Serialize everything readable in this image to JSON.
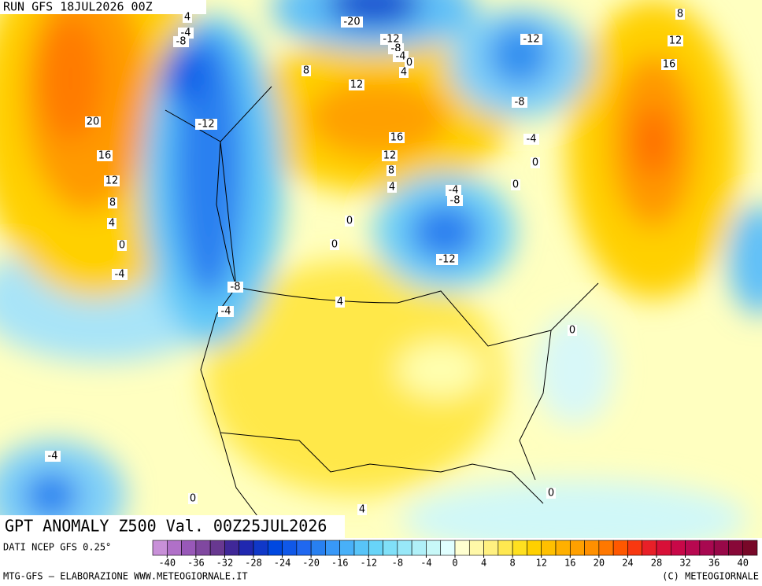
{
  "header": {
    "run": "RUN GFS 18JUL2026 00Z"
  },
  "map": {
    "title": "GPT ANOMALY Z500 Val. 00Z25JUL2026",
    "contour_labels": [
      4,
      -4,
      -8,
      -20,
      -12,
      -8,
      -4,
      0,
      4,
      -12,
      8,
      12,
      16,
      8,
      12,
      20,
      -12,
      -8,
      -4,
      16,
      0,
      12,
      8,
      0,
      4,
      16,
      12,
      8,
      4,
      0,
      -4,
      -4,
      -8,
      0,
      0,
      -12,
      -8,
      -4,
      4,
      0,
      -4,
      0,
      4,
      0
    ]
  },
  "colorbar": {
    "source": "DATI NCEP GFS 0.25°",
    "range": [
      -42,
      42
    ],
    "ticks": [
      -40,
      -36,
      -32,
      -28,
      -24,
      -20,
      -16,
      -12,
      -8,
      -4,
      0,
      4,
      8,
      12,
      16,
      20,
      24,
      28,
      32,
      36,
      40
    ],
    "colors": [
      "#c890d8",
      "#b070c8",
      "#9858b8",
      "#8048a0",
      "#683890",
      "#402898",
      "#2028b0",
      "#1038c8",
      "#0048e0",
      "#1058e8",
      "#2068f0",
      "#2880f0",
      "#3898f8",
      "#48b0f8",
      "#58c4f8",
      "#68d4f8",
      "#80e0f8",
      "#98e8f8",
      "#b0f0f8",
      "#c8f8f8",
      "#e0ffff",
      "#ffffd0",
      "#fff8a8",
      "#fff080",
      "#ffe850",
      "#ffe020",
      "#ffd000",
      "#ffc000",
      "#ffb000",
      "#ffa000",
      "#ff9000",
      "#ff7800",
      "#ff5800",
      "#f83810",
      "#e82028",
      "#d81038",
      "#c80848",
      "#b80850",
      "#a80850",
      "#980848",
      "#880838",
      "#780828"
    ]
  },
  "footer": {
    "left": "MTG-GFS — ELABORAZIONE WWW.METEOGIORNALE.IT",
    "right": "(C) METEOGIORNALE"
  }
}
